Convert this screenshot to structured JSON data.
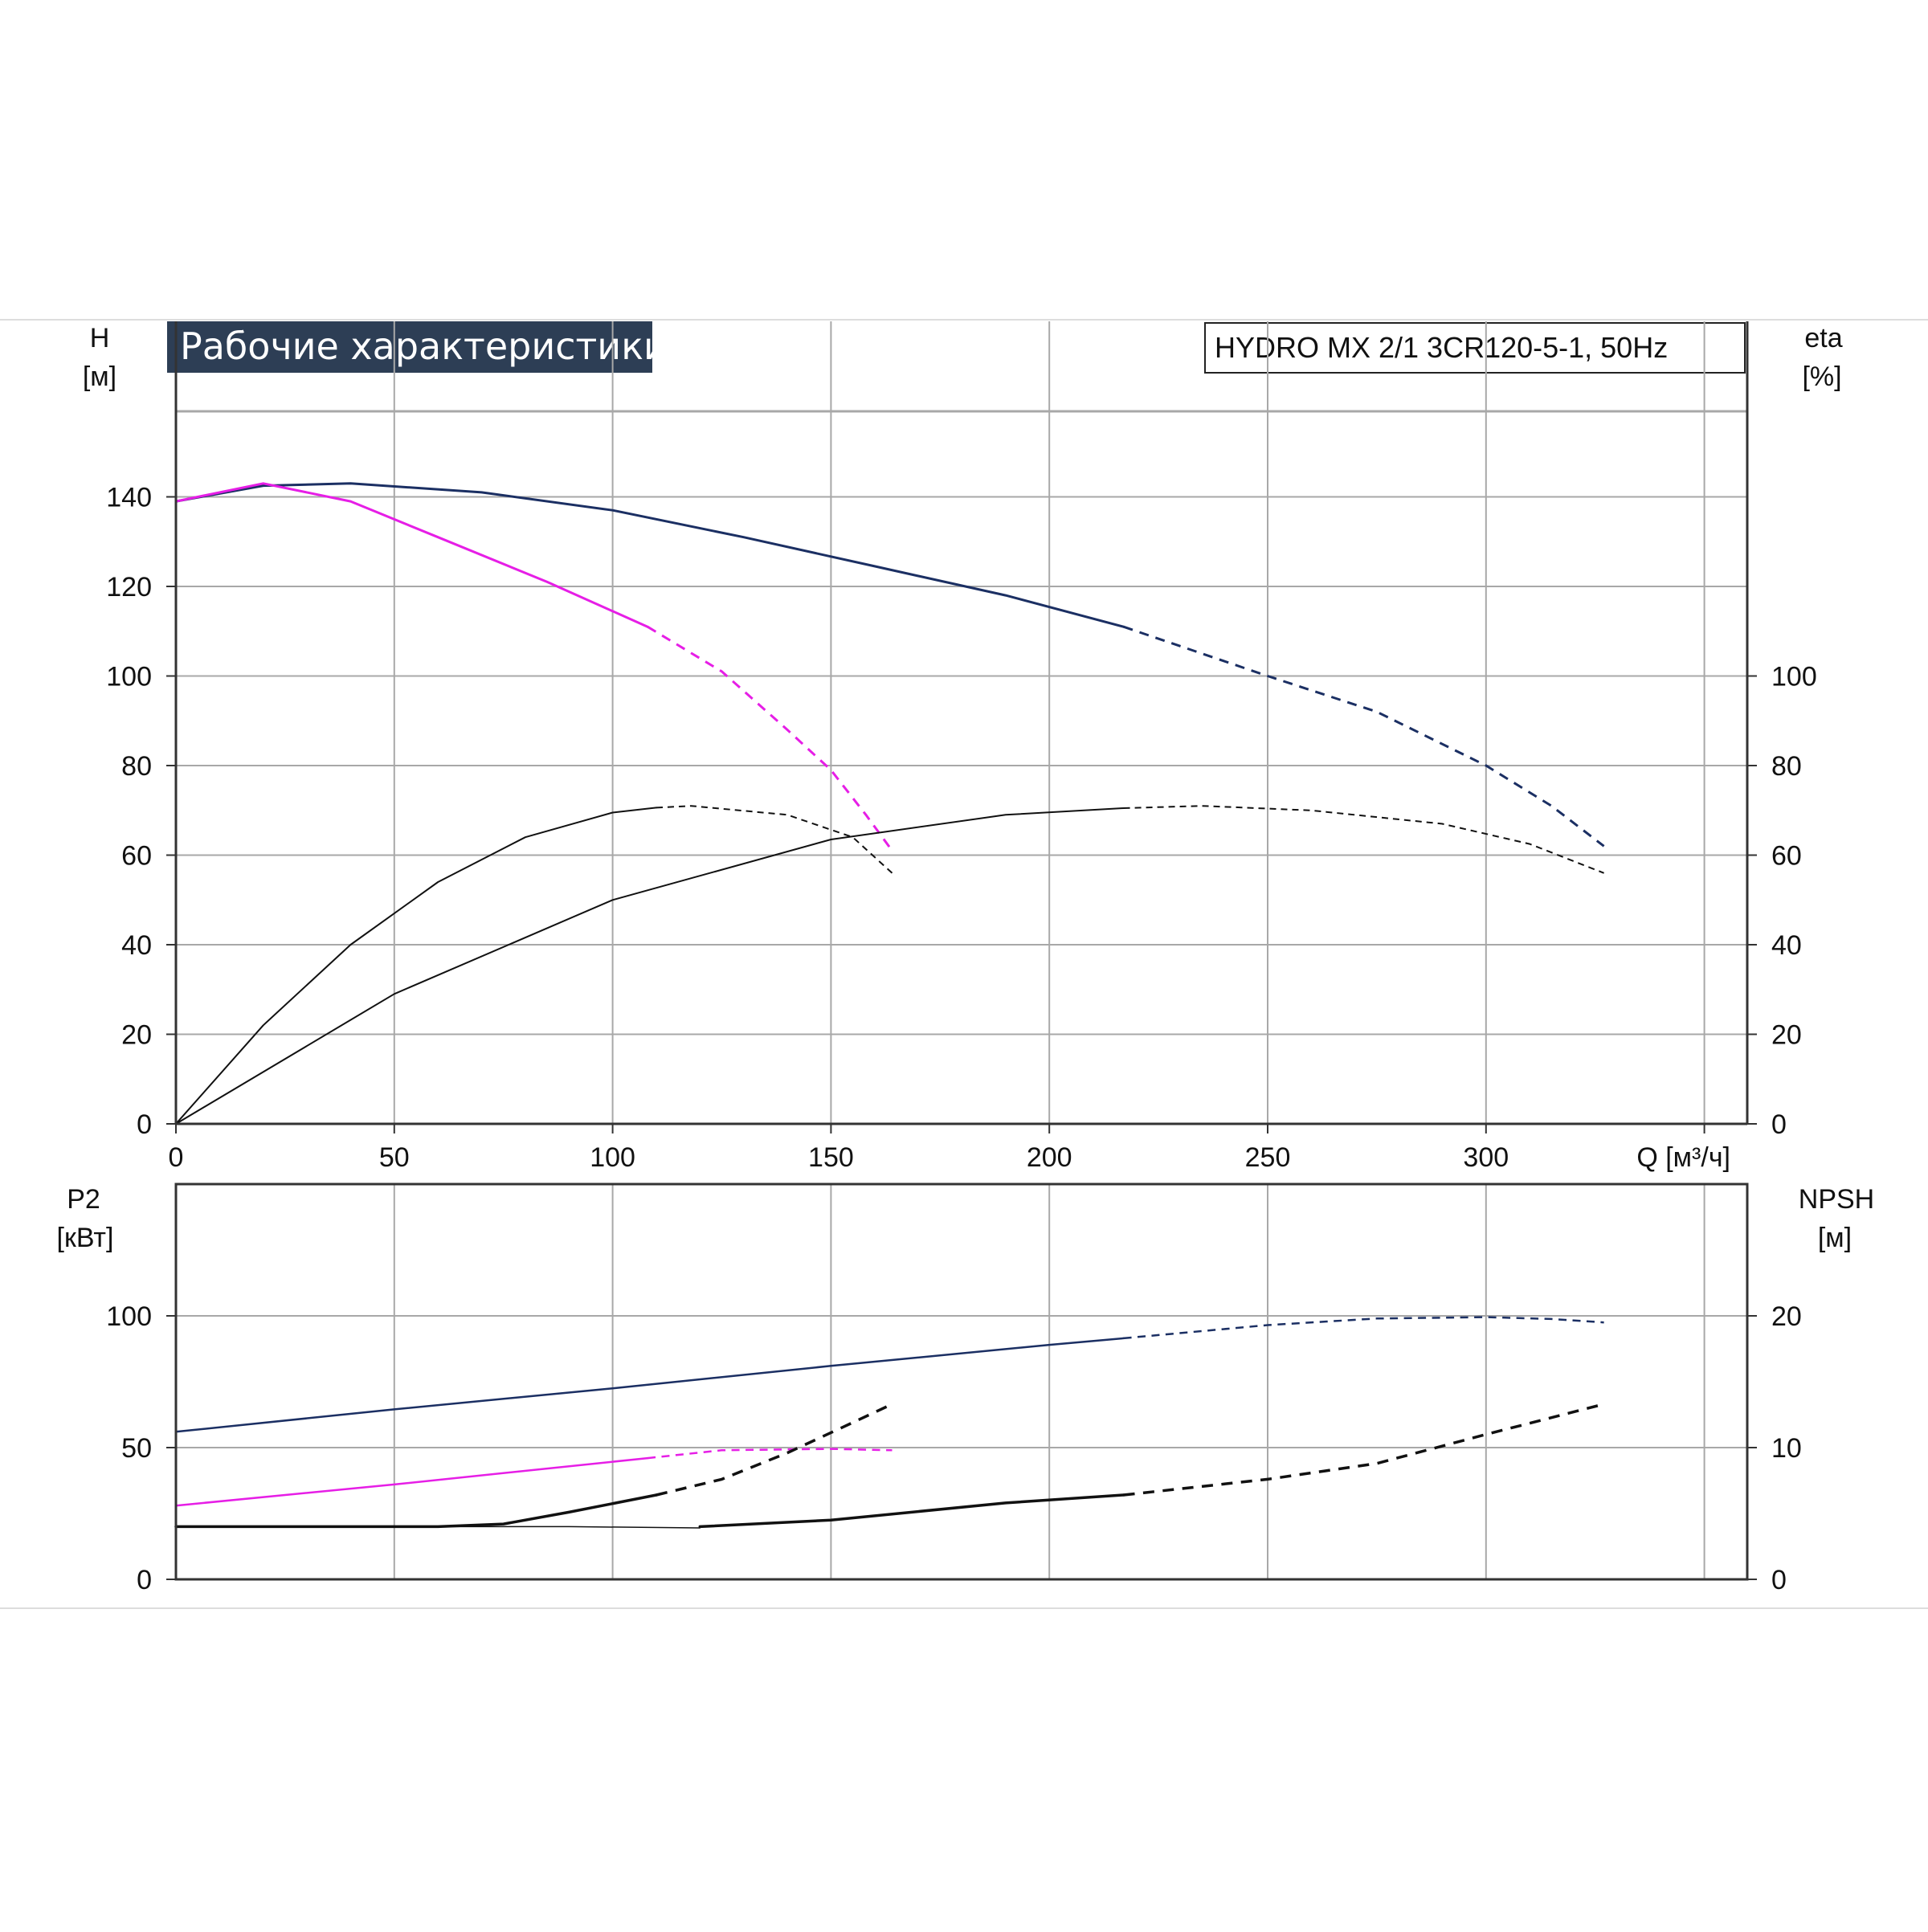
{
  "header": {
    "title": "Рабочие характеристики",
    "model": "HYDRO MX 2/1 3CR120-5-1, 50Hz"
  },
  "colors": {
    "title_bg": "#2d3e55",
    "grid": "#a8a8a8",
    "axes": "#333333",
    "navy": "#1b2f63",
    "magenta": "#e61ee6",
    "black": "#111111"
  },
  "chart_data": [
    {
      "id": "performance",
      "type": "line",
      "x_label": "Q [м³/ч]",
      "left_axis": {
        "label": "H",
        "unit": "[м]",
        "lim": [
          0,
          152
        ],
        "ticks": [
          0,
          20,
          40,
          60,
          80,
          100,
          120,
          140
        ]
      },
      "right_axis": {
        "label": "eta",
        "unit": "[%]",
        "lim": [
          0,
          152
        ],
        "ticks": [
          0,
          20,
          40,
          60,
          80,
          100
        ]
      },
      "x_lim": [
        0,
        360
      ],
      "x_ticks": [
        0,
        50,
        100,
        150,
        200,
        250,
        300
      ],
      "grid": true,
      "series": [
        {
          "key": "H-3pumps",
          "color": "navy",
          "width": 3,
          "solid": [
            [
              0,
              139
            ],
            [
              20,
              142.5
            ],
            [
              40,
              143
            ],
            [
              70,
              141
            ],
            [
              100,
              137
            ],
            [
              130,
              131
            ],
            [
              160,
              124.5
            ],
            [
              190,
              118
            ],
            [
              217,
              111
            ]
          ],
          "dashed": [
            [
              217,
              111
            ],
            [
              250,
              100
            ],
            [
              275,
              92
            ],
            [
              300,
              80
            ],
            [
              315,
              71
            ],
            [
              327,
              62
            ]
          ]
        },
        {
          "key": "H-1pump",
          "color": "magenta",
          "width": 3,
          "solid": [
            [
              0,
              139
            ],
            [
              20,
              143
            ],
            [
              40,
              139
            ],
            [
              60,
              131
            ],
            [
              85,
              121
            ],
            [
              108,
              111
            ]
          ],
          "dashed": [
            [
              108,
              111
            ],
            [
              125,
              101
            ],
            [
              140,
              88
            ],
            [
              150,
              79
            ],
            [
              158,
              69
            ],
            [
              164,
              61
            ]
          ]
        },
        {
          "key": "eta-1pump",
          "color": "black",
          "width": 2,
          "solid": [
            [
              0,
              0
            ],
            [
              20,
              22
            ],
            [
              40,
              40
            ],
            [
              60,
              54
            ],
            [
              80,
              64
            ],
            [
              100,
              69.5
            ],
            [
              110,
              70.6
            ]
          ],
          "dashed": [
            [
              110,
              70.6
            ],
            [
              118,
              71
            ],
            [
              140,
              69
            ],
            [
              155,
              64
            ],
            [
              164,
              56
            ]
          ]
        },
        {
          "key": "eta-3pumps",
          "color": "black",
          "width": 2,
          "solid": [
            [
              0,
              0
            ],
            [
              50,
              29
            ],
            [
              100,
              50
            ],
            [
              150,
              63.5
            ],
            [
              190,
              69
            ],
            [
              217,
              70.5
            ]
          ],
          "dashed": [
            [
              217,
              70.5
            ],
            [
              235,
              71
            ],
            [
              260,
              70
            ],
            [
              290,
              67
            ],
            [
              310,
              62.5
            ],
            [
              327,
              56
            ]
          ]
        }
      ]
    },
    {
      "id": "power-npsh",
      "type": "line",
      "left_axis": {
        "label": "P2",
        "unit": "[кВт]",
        "lim": [
          0,
          140
        ],
        "ticks": [
          0,
          50,
          100
        ]
      },
      "right_axis": {
        "label": "NPSH",
        "unit": "[м]",
        "lim": [
          0,
          28
        ],
        "ticks": [
          0,
          10,
          20
        ]
      },
      "x_lim": [
        0,
        360
      ],
      "grid": true,
      "series": [
        {
          "key": "P2-3pumps",
          "color": "navy",
          "width": 2.5,
          "axis": "left",
          "solid": [
            [
              0,
              56
            ],
            [
              50,
              64.5
            ],
            [
              100,
              72.5
            ],
            [
              150,
              81
            ],
            [
              200,
              89
            ],
            [
              217,
              91.5
            ]
          ],
          "dashed": [
            [
              217,
              91.5
            ],
            [
              250,
              96.5
            ],
            [
              275,
              99
            ],
            [
              300,
              99.5
            ],
            [
              315,
              98.8
            ],
            [
              327,
              97.5
            ]
          ]
        },
        {
          "key": "P2-1pump",
          "color": "magenta",
          "width": 2.5,
          "axis": "left",
          "solid": [
            [
              0,
              28
            ],
            [
              50,
              36
            ],
            [
              108,
              46
            ]
          ],
          "dashed": [
            [
              108,
              46
            ],
            [
              125,
              49
            ],
            [
              150,
              49.5
            ],
            [
              164,
              49
            ]
          ]
        },
        {
          "key": "NPSH-1pump",
          "color": "black",
          "width": 3.5,
          "axis": "right",
          "solid": [
            [
              0,
              4
            ],
            [
              60,
              4
            ],
            [
              75,
              4.2
            ],
            [
              90,
              5.1
            ],
            [
              110,
              6.4
            ]
          ],
          "dashed": [
            [
              110,
              6.4
            ],
            [
              125,
              7.6
            ],
            [
              140,
              9.6
            ],
            [
              155,
              11.9
            ],
            [
              164,
              13.3
            ]
          ]
        },
        {
          "key": "NPSH-3pumps",
          "color": "black",
          "width": 3.5,
          "axis": "right",
          "solid": [
            [
              120,
              4
            ],
            [
              150,
              4.5
            ],
            [
              190,
              5.8
            ],
            [
              217,
              6.4
            ]
          ],
          "dashed": [
            [
              217,
              6.4
            ],
            [
              250,
              7.6
            ],
            [
              275,
              8.8
            ],
            [
              300,
              11
            ],
            [
              327,
              13.3
            ]
          ]
        },
        {
          "key": "NPSH-transition",
          "color": "black",
          "width": 1.5,
          "axis": "right",
          "solid": [
            [
              60,
              4
            ],
            [
              90,
              4
            ],
            [
              120,
              3.9
            ]
          ],
          "dashed": []
        }
      ]
    }
  ]
}
